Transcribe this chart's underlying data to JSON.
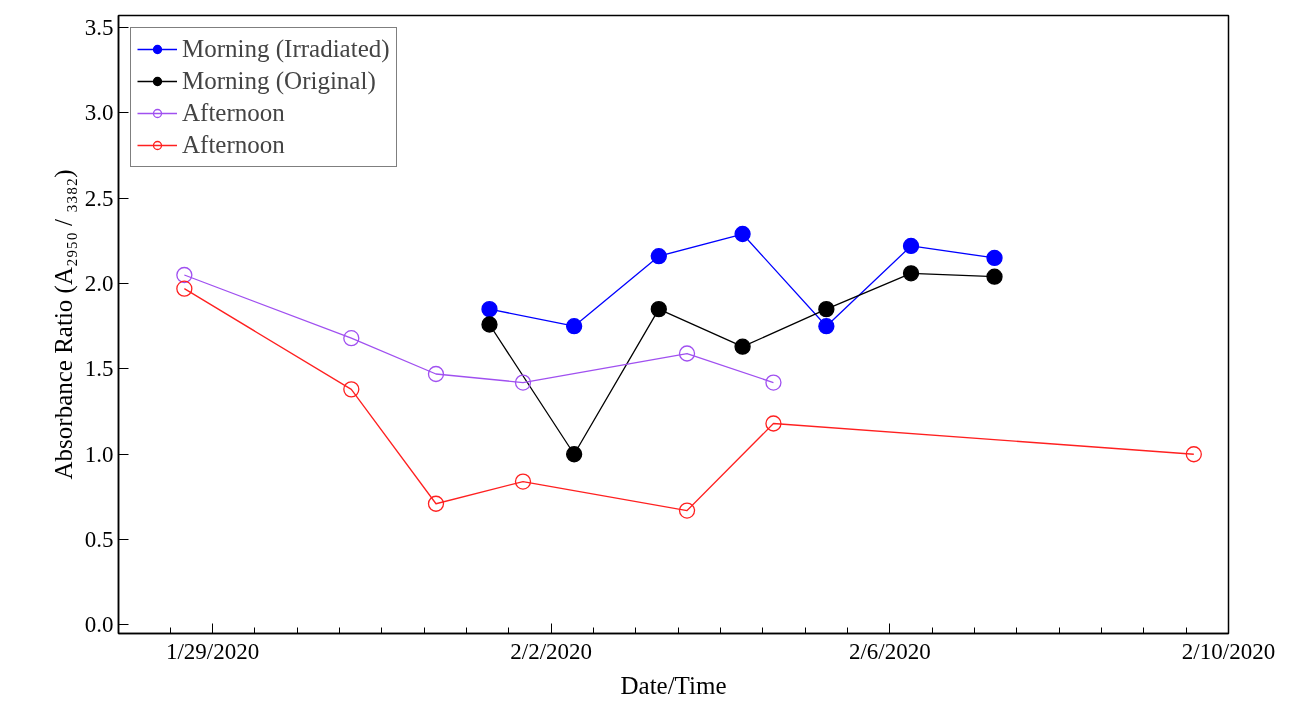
{
  "chart_data": {
    "type": "line",
    "xlabel": "Date/Time",
    "ylabel": "Absorbance Ratio (A₂₉₅₀ / ₃₃₈₂)",
    "xlim": [
      "2020-01-27T21:20",
      "2020-02-10T00:00"
    ],
    "xticks": [
      {
        "value": "2020-01-28T12:00",
        "label": null
      },
      {
        "value": "2020-01-29",
        "label": "1/29/2020"
      },
      {
        "value": "2020-01-29T12:00",
        "label": null
      },
      {
        "value": "2020-01-30",
        "label": null
      },
      {
        "value": "2020-01-30T12:00",
        "label": null
      },
      {
        "value": "2020-01-31",
        "label": null
      },
      {
        "value": "2020-01-31T12:00",
        "label": null
      },
      {
        "value": "2020-02-01",
        "label": null
      },
      {
        "value": "2020-02-01T12:00",
        "label": null
      },
      {
        "value": "2020-02-02",
        "label": "2/2/2020"
      },
      {
        "value": "2020-02-02T12:00",
        "label": null
      },
      {
        "value": "2020-02-03",
        "label": null
      },
      {
        "value": "2020-02-03T12:00",
        "label": null
      },
      {
        "value": "2020-02-04",
        "label": null
      },
      {
        "value": "2020-02-04T12:00",
        "label": null
      },
      {
        "value": "2020-02-05",
        "label": null
      },
      {
        "value": "2020-02-05T12:00",
        "label": null
      },
      {
        "value": "2020-02-06",
        "label": "2/6/2020"
      },
      {
        "value": "2020-02-06T12:00",
        "label": null
      },
      {
        "value": "2020-02-07",
        "label": null
      },
      {
        "value": "2020-02-07T12:00",
        "label": null
      },
      {
        "value": "2020-02-08",
        "label": null
      },
      {
        "value": "2020-02-08T12:00",
        "label": null
      },
      {
        "value": "2020-02-09",
        "label": null
      },
      {
        "value": "2020-02-09T12:00",
        "label": null
      },
      {
        "value": "2020-02-10",
        "label": "2/10/2020"
      }
    ],
    "ylim": [
      -0.05,
      3.57
    ],
    "yticks": [
      {
        "value": 0,
        "label": "0.0"
      },
      {
        "value": 0.5,
        "label": "0.5"
      },
      {
        "value": 1,
        "label": "1.0"
      },
      {
        "value": 1.5,
        "label": "1.5"
      },
      {
        "value": 2,
        "label": "2.0"
      },
      {
        "value": 2.5,
        "label": "2.5"
      },
      {
        "value": 3,
        "label": "3.0"
      },
      {
        "value": 3.5,
        "label": "3.5"
      }
    ],
    "grid": false,
    "legend": "top left",
    "line_style": "solid",
    "series": [
      {
        "name": "Morning (Irradiated)",
        "color": "#0000ff",
        "marker": "circle",
        "x": [
          "2020-02-01T06:30",
          "2020-02-02T06:30",
          "2020-02-03T06:30",
          "2020-02-04T06:15",
          "2020-02-05T06:00",
          "2020-02-06T06:00",
          "2020-02-07T05:40"
        ],
        "values": [
          1.85,
          1.75,
          2.16,
          2.29,
          1.75,
          2.22,
          2.15
        ]
      },
      {
        "name": "Morning (Original)",
        "color": "#000000",
        "marker": "circle",
        "x": [
          "2020-02-01T06:30",
          "2020-02-02T06:30",
          "2020-02-03T06:30",
          "2020-02-04T06:15",
          "2020-02-05T06:00",
          "2020-02-06T06:00",
          "2020-02-07T05:40"
        ],
        "values": [
          1.76,
          1.0,
          1.85,
          1.63,
          1.85,
          2.06,
          2.04
        ]
      },
      {
        "name": "Afternoon",
        "color": "#a050f0",
        "marker": "circle_open",
        "x": [
          "2020-01-28T16:00",
          "2020-01-30T15:20",
          "2020-01-31T15:20",
          "2020-02-01T16:00",
          "2020-02-03T14:30",
          "2020-02-04T15:00"
        ],
        "values": [
          2.05,
          1.68,
          1.47,
          1.42,
          1.59,
          1.42
        ]
      },
      {
        "name": "Afternoon",
        "color": "#ff2020",
        "marker": "circle_open",
        "x": [
          "2020-01-28T16:00",
          "2020-01-30T15:20",
          "2020-01-31T15:20",
          "2020-02-01T16:00",
          "2020-02-03T14:30",
          "2020-02-04T15:00",
          "2020-02-09T14:10"
        ],
        "values": [
          1.97,
          1.38,
          0.71,
          0.84,
          0.67,
          1.18,
          1.0
        ]
      }
    ]
  }
}
